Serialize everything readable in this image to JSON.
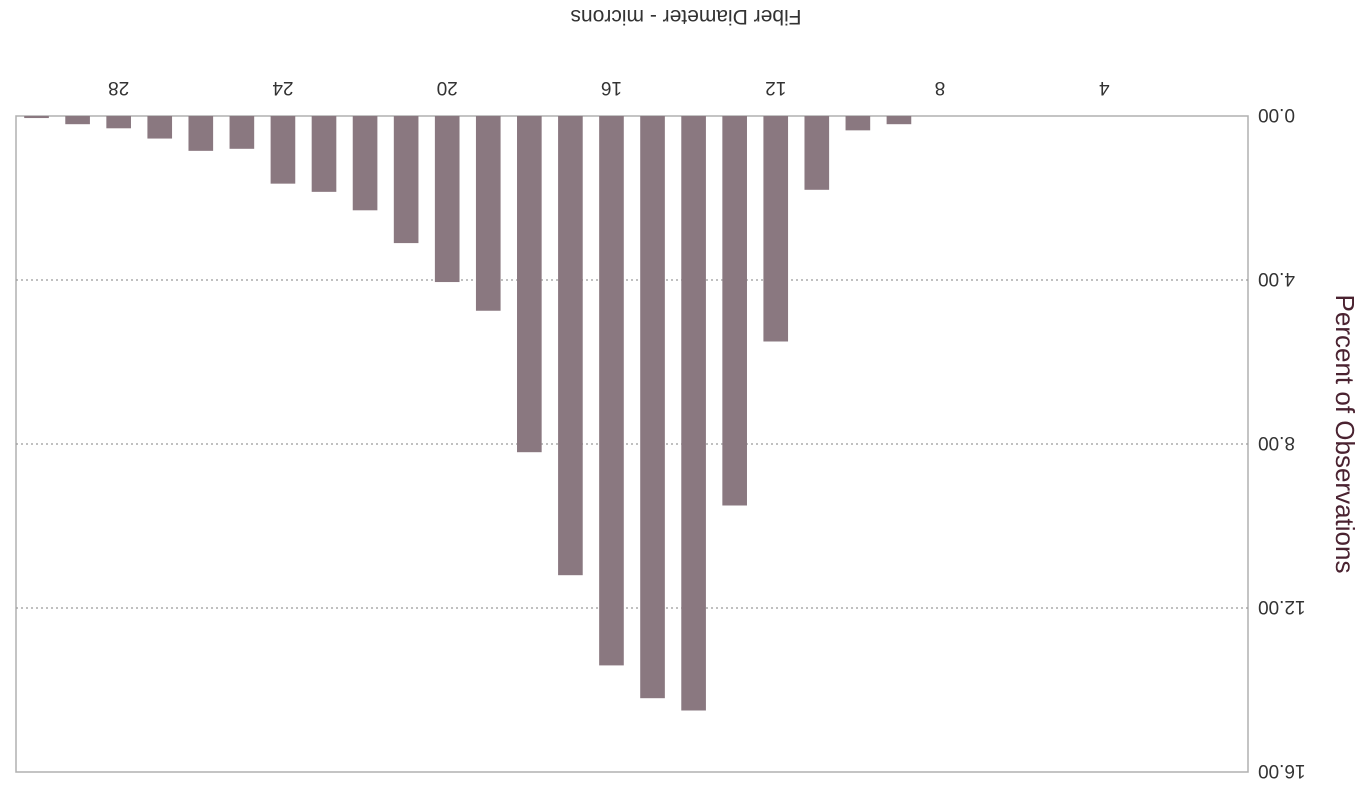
{
  "chart_data": {
    "type": "bar",
    "orientation": "rotated-180",
    "xlabel": "Fiber Diameter - microns",
    "ylabel": "Percent of Observations",
    "x_ticks": [
      "4",
      "8",
      "12",
      "16",
      "20",
      "24",
      "28"
    ],
    "y_ticks": [
      "0.00",
      "4.00",
      "8.00",
      "12.00",
      "16.00"
    ],
    "xlim": [
      0.5,
      30.5
    ],
    "ylim": [
      0,
      16
    ],
    "grid": "horizontal dotted",
    "legend": "none",
    "bar_color": "#8a7880",
    "x": [
      9,
      10,
      11,
      12,
      13,
      14,
      15,
      16,
      17,
      18,
      19,
      20,
      21,
      22,
      23,
      24,
      25,
      26,
      27,
      28,
      29,
      30
    ],
    "values": [
      0.2,
      0.35,
      1.8,
      5.5,
      9.5,
      14.5,
      14.2,
      13.4,
      11.2,
      8.2,
      4.75,
      4.05,
      3.1,
      2.3,
      1.85,
      1.65,
      0.8,
      0.85,
      0.55,
      0.3,
      0.2,
      0.05
    ]
  }
}
